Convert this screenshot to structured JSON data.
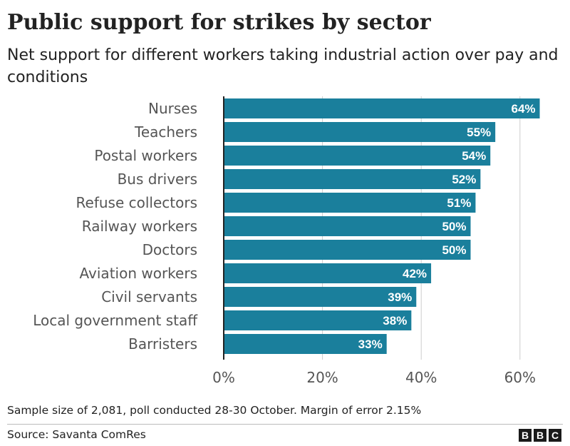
{
  "title": "Public support for strikes by sector",
  "subtitle": "Net support for different workers taking industrial action over pay and conditions",
  "note": "Sample size of 2,081, poll conducted 28-30 October. Margin of error 2.15%",
  "source": "Source: Savanta ComRes",
  "logo": [
    "B",
    "B",
    "C"
  ],
  "colors": {
    "bar": "#1a7f9c",
    "grid": "#cccccc",
    "axis": "#222222",
    "text": "#222222",
    "label": "#555555"
  },
  "chart_data": {
    "type": "bar",
    "orientation": "horizontal",
    "title": "Public support for strikes by sector",
    "categories": [
      "Nurses",
      "Teachers",
      "Postal workers",
      "Bus drivers",
      "Refuse collectors",
      "Railway workers",
      "Doctors",
      "Aviation workers",
      "Civil servants",
      "Local government staff",
      "Barristers"
    ],
    "values": [
      64,
      55,
      54,
      52,
      51,
      50,
      50,
      42,
      39,
      38,
      33
    ],
    "value_labels": [
      "64%",
      "55%",
      "54%",
      "52%",
      "51%",
      "50%",
      "50%",
      "42%",
      "39%",
      "38%",
      "33%"
    ],
    "xlim": [
      0,
      70
    ],
    "xticks": [
      0,
      20,
      40,
      60
    ],
    "xtick_labels": [
      "0%",
      "20%",
      "40%",
      "60%"
    ],
    "grid": true,
    "xlabel": "",
    "ylabel": ""
  }
}
